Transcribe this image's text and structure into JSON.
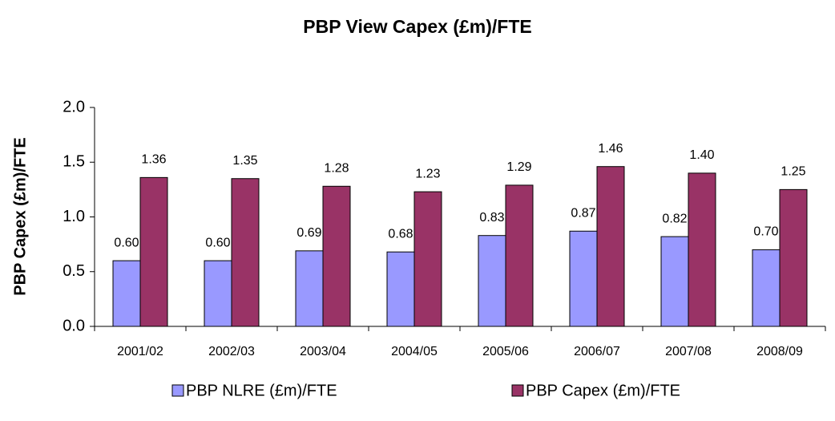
{
  "chart_data": {
    "type": "bar",
    "title": "PBP View Capex (£m)/FTE",
    "y_label": "PBP Capex (£m)/FTE",
    "categories": [
      "2001/02",
      "2002/03",
      "2003/04",
      "2004/05",
      "2005/06",
      "2006/07",
      "2007/08",
      "2008/09"
    ],
    "series": [
      {
        "name": "PBP NLRE (£m)/FTE",
        "color": "#9999ff",
        "values": [
          0.6,
          0.6,
          0.69,
          0.68,
          0.83,
          0.87,
          0.82,
          0.7
        ],
        "value_labels": [
          "0.60",
          "0.60",
          "0.69",
          "0.68",
          "0.83",
          "0.87",
          "0.82",
          "0.70"
        ]
      },
      {
        "name": "PBP Capex (£m)/FTE",
        "color": "#993366",
        "values": [
          1.36,
          1.35,
          1.28,
          1.23,
          1.29,
          1.46,
          1.4,
          1.25
        ],
        "value_labels": [
          "1.36",
          "1.35",
          "1.28",
          "1.23",
          "1.29",
          "1.46",
          "1.40",
          "1.25"
        ]
      }
    ],
    "ylim": [
      0,
      2
    ],
    "yticks": [
      {
        "value": 0,
        "label": "0.0"
      },
      {
        "value": 0.5,
        "label": "0.5"
      },
      {
        "value": 1,
        "label": "1.0"
      },
      {
        "value": 1.5,
        "label": "1.5"
      },
      {
        "value": 2,
        "label": "2.0"
      }
    ],
    "grid": false,
    "legend": "bottom"
  }
}
